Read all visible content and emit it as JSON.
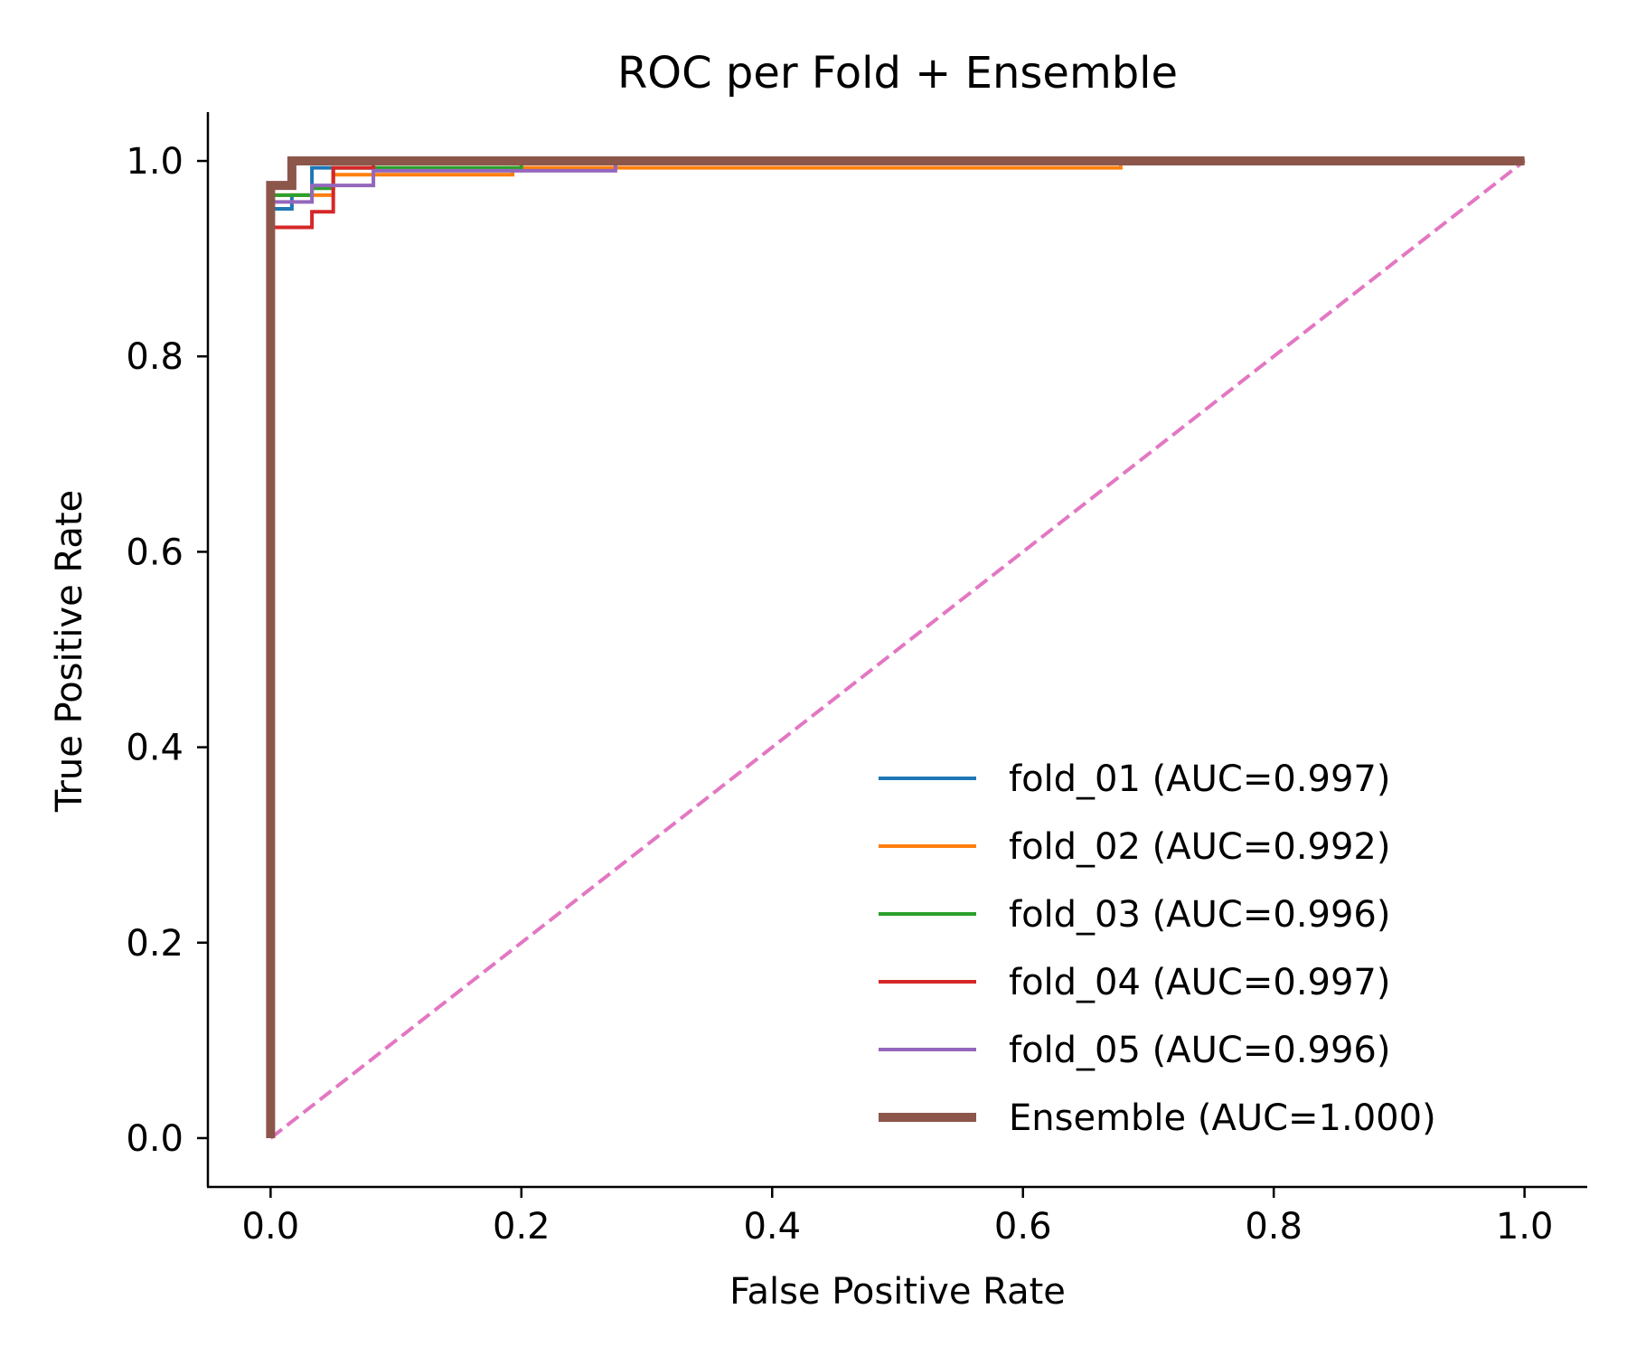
{
  "chart_data": {
    "type": "line",
    "title": "ROC per Fold + Ensemble",
    "xlabel": "False Positive Rate",
    "ylabel": "True Positive Rate",
    "xlim": [
      -0.05,
      1.05
    ],
    "ylim": [
      -0.05,
      1.05
    ],
    "xticks": [
      0.0,
      0.2,
      0.4,
      0.6,
      0.8,
      1.0
    ],
    "yticks": [
      0.0,
      0.2,
      0.4,
      0.6,
      0.8,
      1.0
    ],
    "xtick_labels": [
      "0.0",
      "0.2",
      "0.4",
      "0.6",
      "0.8",
      "1.0"
    ],
    "ytick_labels": [
      "0.0",
      "0.2",
      "0.4",
      "0.6",
      "0.8",
      "1.0"
    ],
    "grid": false,
    "legend_position": "lower-right",
    "series": [
      {
        "name": "fold_01 (AUC=0.997)",
        "color": "#1f77b4",
        "style": "solid",
        "x": [
          0.0,
          0.0,
          0.017,
          0.017,
          0.033,
          0.033,
          0.082,
          0.082,
          1.0
        ],
        "y": [
          0.0,
          0.951,
          0.951,
          0.965,
          0.965,
          0.993,
          0.993,
          1.0,
          1.0
        ]
      },
      {
        "name": "fold_02 (AUC=0.992)",
        "color": "#ff7f0e",
        "style": "solid",
        "x": [
          0.0,
          0.0,
          0.05,
          0.05,
          0.193,
          0.193,
          0.678,
          0.678,
          1.0
        ],
        "y": [
          0.0,
          0.965,
          0.965,
          0.986,
          0.986,
          0.993,
          0.993,
          1.0,
          1.0
        ]
      },
      {
        "name": "fold_03 (AUC=0.996)",
        "color": "#2ca02c",
        "style": "solid",
        "x": [
          0.0,
          0.0,
          0.033,
          0.033,
          0.05,
          0.05,
          0.2,
          0.2,
          1.0
        ],
        "y": [
          0.0,
          0.965,
          0.965,
          0.972,
          0.972,
          0.993,
          0.993,
          1.0,
          1.0
        ]
      },
      {
        "name": "fold_04 (AUC=0.997)",
        "color": "#d62728",
        "style": "solid",
        "x": [
          0.0,
          0.0,
          0.033,
          0.033,
          0.05,
          0.05,
          0.082,
          0.082,
          1.0
        ],
        "y": [
          0.0,
          0.932,
          0.932,
          0.948,
          0.948,
          0.993,
          0.993,
          1.0,
          1.0
        ]
      },
      {
        "name": "fold_05 (AUC=0.996)",
        "color": "#9467bd",
        "style": "solid",
        "x": [
          0.0,
          0.0,
          0.033,
          0.033,
          0.082,
          0.082,
          0.275,
          0.275,
          1.0
        ],
        "y": [
          0.0,
          0.958,
          0.958,
          0.975,
          0.975,
          0.99,
          0.99,
          1.0,
          1.0
        ]
      },
      {
        "name": "Ensemble (AUC=1.000)",
        "color": "#8c564b",
        "style": "thick",
        "x": [
          0.0,
          0.0,
          0.017,
          0.017,
          1.0
        ],
        "y": [
          0.0,
          0.975,
          0.975,
          1.0,
          1.0
        ]
      },
      {
        "color": "#e377c2",
        "style": "dashed",
        "x": [
          0.0,
          1.0
        ],
        "y": [
          0.0,
          1.0
        ]
      }
    ]
  }
}
